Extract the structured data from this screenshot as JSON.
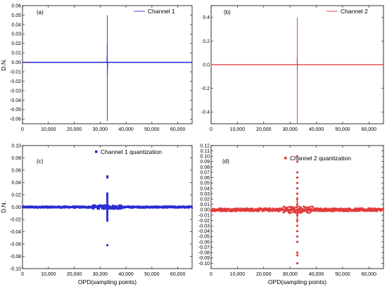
{
  "chart_data": [
    {
      "type": "line",
      "panel_label": "(a)",
      "legend": "Channel 1",
      "color": "#2b2bd6",
      "xlabel": "",
      "ylabel": "D.N.",
      "xlim": [
        0,
        65536
      ],
      "ylim": [
        -0.065,
        0.06
      ],
      "x_ticks": [
        0,
        10000,
        20000,
        30000,
        40000,
        50000,
        60000
      ],
      "x_tick_labels": [
        "0",
        "10,000",
        "20,000",
        "30,000",
        "40,000",
        "50,000",
        "60,000"
      ],
      "y_ticks": [
        -0.06,
        -0.05,
        -0.04,
        -0.03,
        -0.02,
        -0.01,
        0.0,
        0.01,
        0.02,
        0.03,
        0.04,
        0.05,
        0.06
      ],
      "y_tick_labels": [
        "-0.06",
        "-0.05",
        "-0.04",
        "-0.03",
        "-0.02",
        "-0.01",
        "0.00",
        "0.01",
        "0.02",
        "0.03",
        "0.04",
        "0.05",
        "0.06"
      ],
      "baseline": 0.0,
      "noise_band": [
        -0.0006,
        0.0006
      ],
      "spikes": [
        {
          "x": 32768,
          "y": 0.05
        },
        {
          "x": 32768,
          "y": -0.062
        },
        {
          "x": 32710,
          "y": 0.018
        },
        {
          "x": 32830,
          "y": -0.012
        },
        {
          "x": 32650,
          "y": 0.006
        },
        {
          "x": 32890,
          "y": -0.005
        }
      ]
    },
    {
      "type": "line",
      "panel_label": "(b)",
      "legend": "Channel 2",
      "color": "#e23a3a",
      "xlabel": "",
      "ylabel": "",
      "xlim": [
        0,
        65536
      ],
      "ylim": [
        -0.5,
        0.5
      ],
      "x_ticks": [
        0,
        10000,
        20000,
        30000,
        40000,
        50000,
        60000
      ],
      "x_tick_labels": [
        "0",
        "10,000",
        "20,000",
        "30,000",
        "40,000",
        "50,000",
        "60,000"
      ],
      "y_ticks": [
        -0.4,
        -0.2,
        0.0,
        0.2,
        0.4
      ],
      "y_tick_labels": [
        "-0.4",
        "-0.2",
        "0.0",
        "0.2",
        "0.4"
      ],
      "baseline": 0.0,
      "noise_band": [
        -0.004,
        0.004
      ],
      "spikes": [
        {
          "x": 32768,
          "y": 0.4
        },
        {
          "x": 32768,
          "y": -0.5
        },
        {
          "x": 32710,
          "y": 0.06
        },
        {
          "x": 32830,
          "y": -0.05
        }
      ]
    },
    {
      "type": "scatter",
      "panel_label": "(c)",
      "legend": "Channel 1 quantization",
      "color": "#2b2bd6",
      "xlabel": "OPD(sampling points)",
      "ylabel": "D.N.",
      "xlim": [
        0,
        65536
      ],
      "ylim": [
        -0.1,
        0.1
      ],
      "x_ticks": [
        0,
        10000,
        20000,
        30000,
        40000,
        50000,
        60000
      ],
      "x_tick_labels": [
        "0",
        "10,000",
        "20,000",
        "30,000",
        "40,000",
        "50,000",
        "60,000"
      ],
      "y_ticks": [
        -0.1,
        -0.08,
        -0.06,
        -0.04,
        -0.02,
        0.0,
        0.02,
        0.04,
        0.06,
        0.08,
        0.1
      ],
      "y_tick_labels": [
        "-0.10",
        "-0.08",
        "-0.06",
        "-0.04",
        "-0.02",
        "0.00",
        "0.02",
        "0.04",
        "0.06",
        "0.08",
        "0.10"
      ],
      "baseline": 0.0,
      "noise_band": [
        -0.0015,
        0.0015
      ],
      "points": [
        {
          "x": 32768,
          "y": 0.05
        },
        {
          "x": 32768,
          "y": 0.048
        },
        {
          "x": 32768,
          "y": 0.022
        },
        {
          "x": 32768,
          "y": 0.019
        },
        {
          "x": 32768,
          "y": 0.016
        },
        {
          "x": 32768,
          "y": 0.013
        },
        {
          "x": 32768,
          "y": 0.01
        },
        {
          "x": 32768,
          "y": 0.007
        },
        {
          "x": 32768,
          "y": 0.004
        },
        {
          "x": 32768,
          "y": -0.004
        },
        {
          "x": 32768,
          "y": -0.007
        },
        {
          "x": 32768,
          "y": -0.01
        },
        {
          "x": 32768,
          "y": -0.013
        },
        {
          "x": 32768,
          "y": -0.016
        },
        {
          "x": 32768,
          "y": -0.019
        },
        {
          "x": 32768,
          "y": -0.022
        },
        {
          "x": 32768,
          "y": -0.062
        }
      ]
    },
    {
      "type": "scatter",
      "panel_label": "(d)",
      "legend": "Channel 2 quantization",
      "color": "#e23a3a",
      "xlabel": "OPD(sampling points)",
      "ylabel": "",
      "xlim": [
        0,
        65536
      ],
      "ylim": [
        -0.11,
        0.12
      ],
      "x_ticks": [
        0,
        10000,
        20000,
        30000,
        40000,
        50000,
        60000
      ],
      "x_tick_labels": [
        "0",
        "10,000",
        "20,000",
        "30,000",
        "40,000",
        "50,000",
        "60,000"
      ],
      "y_ticks": [
        -0.1,
        -0.09,
        -0.08,
        -0.07,
        -0.06,
        -0.05,
        -0.04,
        -0.03,
        -0.02,
        -0.01,
        0.0,
        0.01,
        0.02,
        0.03,
        0.04,
        0.05,
        0.06,
        0.07,
        0.08,
        0.09,
        0.1,
        0.11,
        0.12
      ],
      "y_tick_labels": [
        "-0.10",
        "-0.09",
        "-0.08",
        "-0.07",
        "-0.06",
        "-0.05",
        "-0.04",
        "-0.03",
        "-0.02",
        "-0.01",
        "0.00",
        "0.01",
        "0.02",
        "0.03",
        "0.04",
        "0.05",
        "0.06",
        "0.07",
        "0.08",
        "0.09",
        "0.10",
        "0.11",
        "0.12"
      ],
      "baseline": 0.0,
      "noise_band": [
        -0.003,
        0.003
      ],
      "points": [
        {
          "x": 32768,
          "y": 0.1
        },
        {
          "x": 32768,
          "y": 0.09
        },
        {
          "x": 32768,
          "y": 0.07
        },
        {
          "x": 32768,
          "y": 0.06
        },
        {
          "x": 32768,
          "y": 0.05
        },
        {
          "x": 32768,
          "y": 0.04
        },
        {
          "x": 32768,
          "y": 0.03
        },
        {
          "x": 32768,
          "y": 0.02
        },
        {
          "x": 32768,
          "y": 0.01
        },
        {
          "x": 32768,
          "y": -0.01
        },
        {
          "x": 32768,
          "y": -0.02
        },
        {
          "x": 32768,
          "y": -0.03
        },
        {
          "x": 32768,
          "y": -0.04
        },
        {
          "x": 32768,
          "y": -0.05
        },
        {
          "x": 32768,
          "y": -0.06
        },
        {
          "x": 32768,
          "y": -0.08
        },
        {
          "x": 32768,
          "y": -0.085
        },
        {
          "x": 32768,
          "y": -0.1
        }
      ]
    }
  ]
}
